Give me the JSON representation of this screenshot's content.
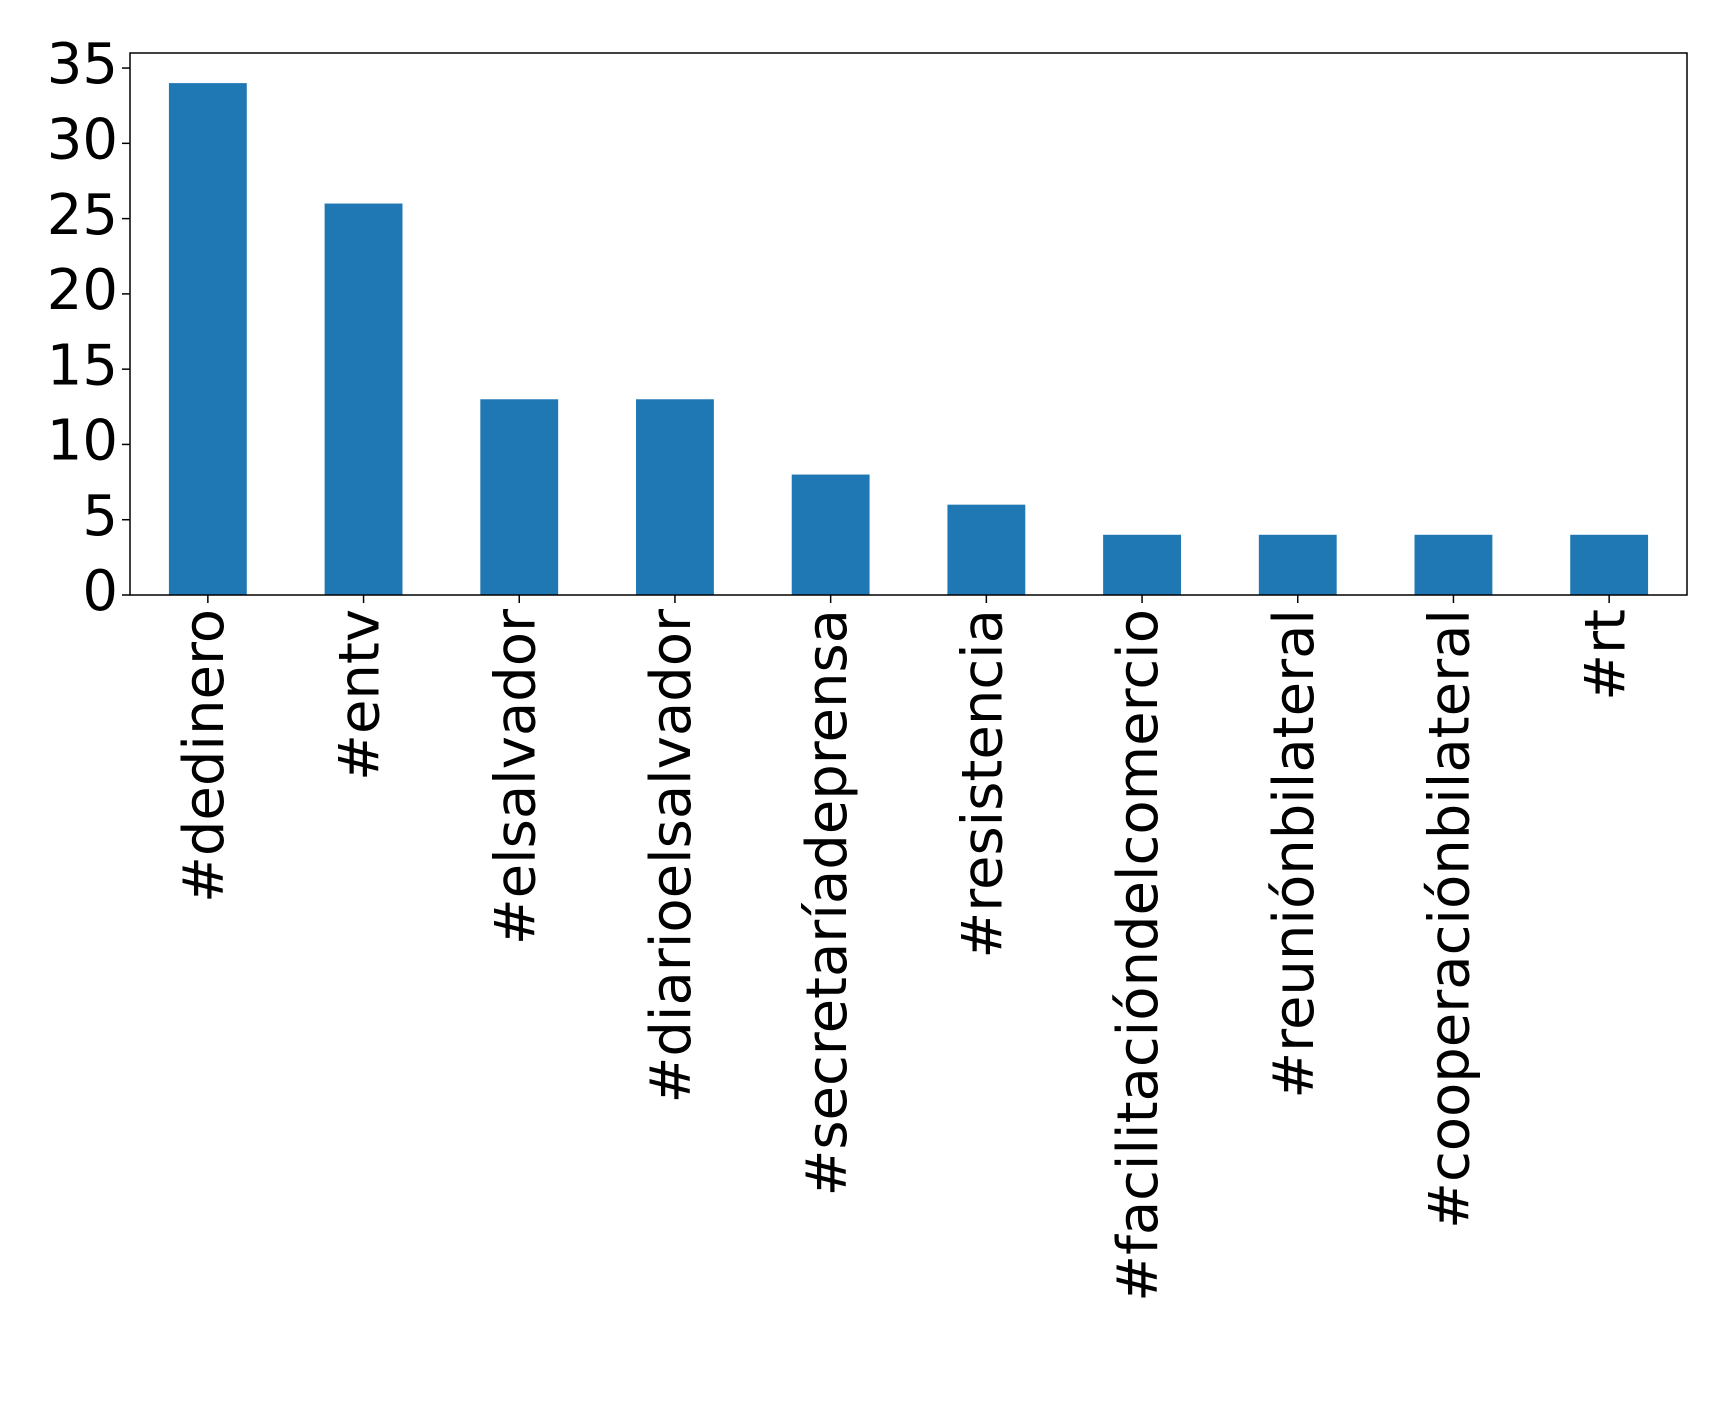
{
  "chart_data": {
    "type": "bar",
    "categories": [
      "#dedinero",
      "#entv",
      "#elsalvador",
      "#diarioelsalvador",
      "#secretaríadeprensa",
      "#resistencia",
      "#facilitacióndelcomercio",
      "#reuniónbilateral",
      "#cooperaciónbilateral",
      "#rt"
    ],
    "values": [
      34,
      26,
      13,
      13,
      8,
      6,
      4,
      4,
      4,
      4
    ],
    "color": "#1f77b4",
    "ylim": [
      0,
      36
    ],
    "yticks": [
      0,
      5,
      10,
      15,
      20,
      25,
      30,
      35
    ],
    "grid": false
  }
}
